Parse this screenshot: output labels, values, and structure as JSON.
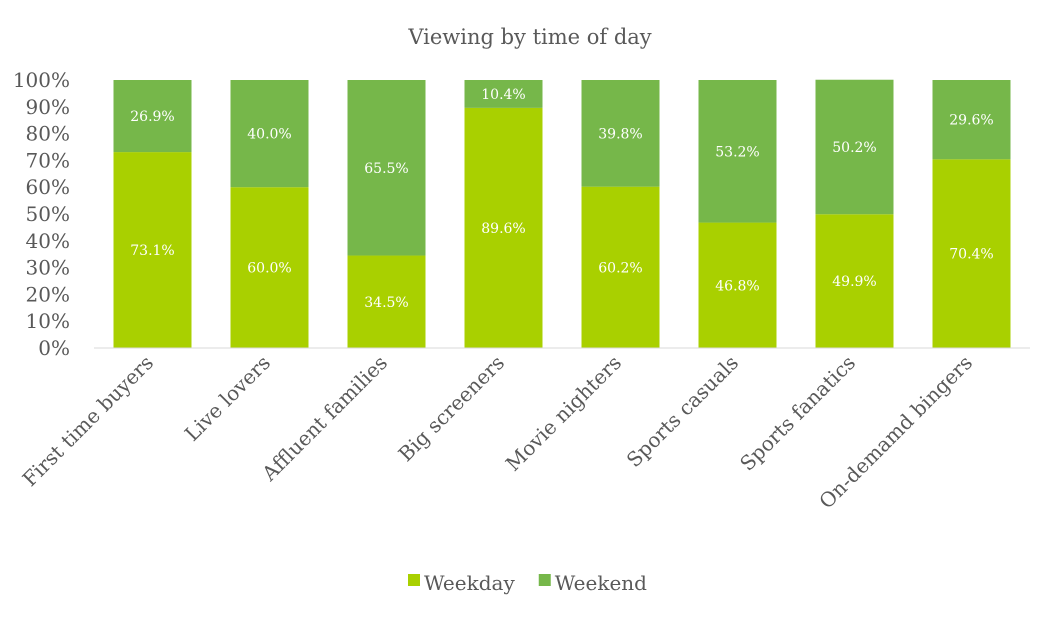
{
  "chart_data": {
    "type": "bar",
    "stacked": true,
    "title": "Viewing by time of day",
    "categories": [
      "First time buyers",
      "Live lovers",
      "Affluent families",
      "Big screeners",
      "Movie nighters",
      "Sports casuals",
      "Sports fanatics",
      "On-demamd bingers"
    ],
    "series": [
      {
        "name": "Weekday",
        "color": "#a9d000",
        "values": [
          73.1,
          60.0,
          34.5,
          89.6,
          60.2,
          46.8,
          49.9,
          70.4
        ]
      },
      {
        "name": "Weekend",
        "color": "#76b74a",
        "values": [
          26.9,
          40.0,
          65.5,
          10.4,
          39.8,
          53.2,
          50.2,
          29.6
        ]
      }
    ],
    "ylim": [
      0,
      100
    ],
    "yticks": [
      "0%",
      "10%",
      "20%",
      "30%",
      "40%",
      "50%",
      "60%",
      "70%",
      "80%",
      "90%",
      "100%"
    ],
    "grid": false,
    "legend": "bottom"
  }
}
